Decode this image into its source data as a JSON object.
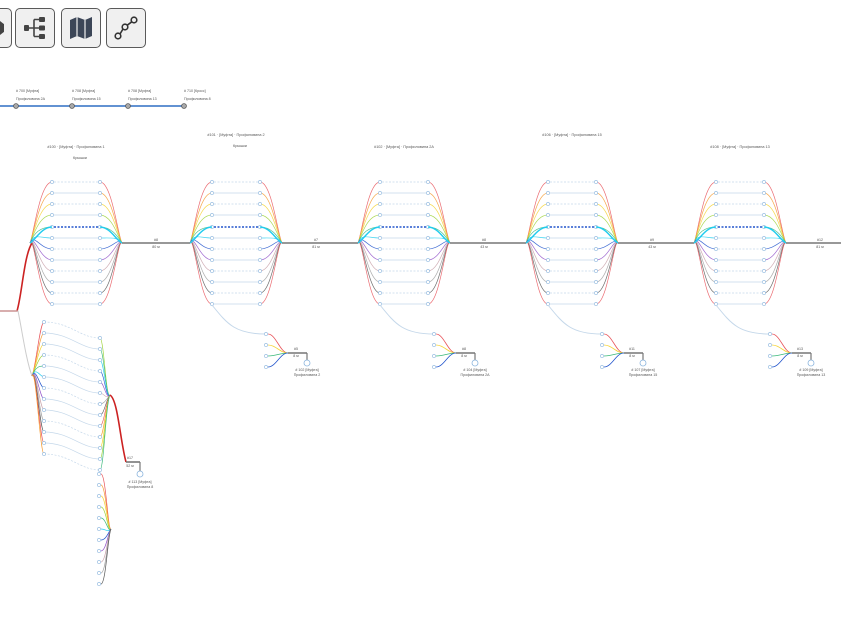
{
  "toolbar": {
    "buttons": [
      {
        "name": "play-button",
        "icon": "play-icon"
      },
      {
        "name": "tree-view-button",
        "icon": "tree-structure-icon"
      },
      {
        "name": "map-view-button",
        "icon": "map-icon"
      },
      {
        "name": "route-view-button",
        "icon": "route-icon"
      }
    ]
  },
  "colors": {
    "route_line": "#2f6fc4",
    "red_path": "#cc2222",
    "main_line": "#777777",
    "branch_light": "#c5d8ea",
    "node_stroke": "#8ab4dd",
    "accent_cyan": "#22ccee",
    "accent_blue": "#2255cc",
    "fan_colors": [
      "#e8545a",
      "#f59b32",
      "#f5d232",
      "#9ed23a",
      "#3ab87a",
      "#22ccee",
      "#2255cc",
      "#9050c8",
      "#c8a0a8",
      "#a0a0a0",
      "#555555"
    ]
  },
  "route": {
    "stops": [
      {
        "id": "# 700 [Муфта]",
        "name": "Профиловина 2А"
      },
      {
        "id": "# 708 [Муфта]",
        "name": "Профиловина 15"
      },
      {
        "id": "# 708 [Муфта]",
        "name": "Профиловина 13"
      },
      {
        "id": "# 710 [Кросс]",
        "name": "Профиловина 8"
      }
    ]
  },
  "groups": [
    {
      "header": "#100 · [Муфта] · Профиловина 1",
      "sub": "Крышки",
      "pos": "#8",
      "len": "80 м"
    },
    {
      "header": "#101 · [Муфта] · Профиловина 2",
      "sub": "Крышки",
      "pos": "#7",
      "len": "81 м"
    },
    {
      "header": "#102 · [Муфта] · Профиловина 2А",
      "sub": "",
      "pos": "#8",
      "len": "43 м"
    },
    {
      "header": "#106 · [Муфта] · Профиловина 15",
      "sub": "",
      "pos": "#9",
      "len": "43 м"
    },
    {
      "header": "#108 · [Муфта] · Профиловина 13",
      "sub": "",
      "pos": "#12",
      "len": "81 м"
    }
  ],
  "subnodes": [
    {
      "pos": "#5",
      "len": "8 м",
      "id": "# 102 [Муфта]",
      "name": "Профиловина 2"
    },
    {
      "pos": "#8",
      "len": "8 м",
      "id": "# 104 [Муфта]",
      "name": "Профиловина 2А"
    },
    {
      "pos": "#11",
      "len": "8 м",
      "id": "# 107 [Муфта]",
      "name": "Профиловина 15"
    },
    {
      "pos": "#13",
      "len": "8 м",
      "id": "# 109 [Муфта]",
      "name": "Профиловина 13"
    }
  ],
  "lower": {
    "pos": "#17",
    "len": "52 м",
    "id": "# 113 [Муфта]",
    "name": "Профиловина 8"
  }
}
